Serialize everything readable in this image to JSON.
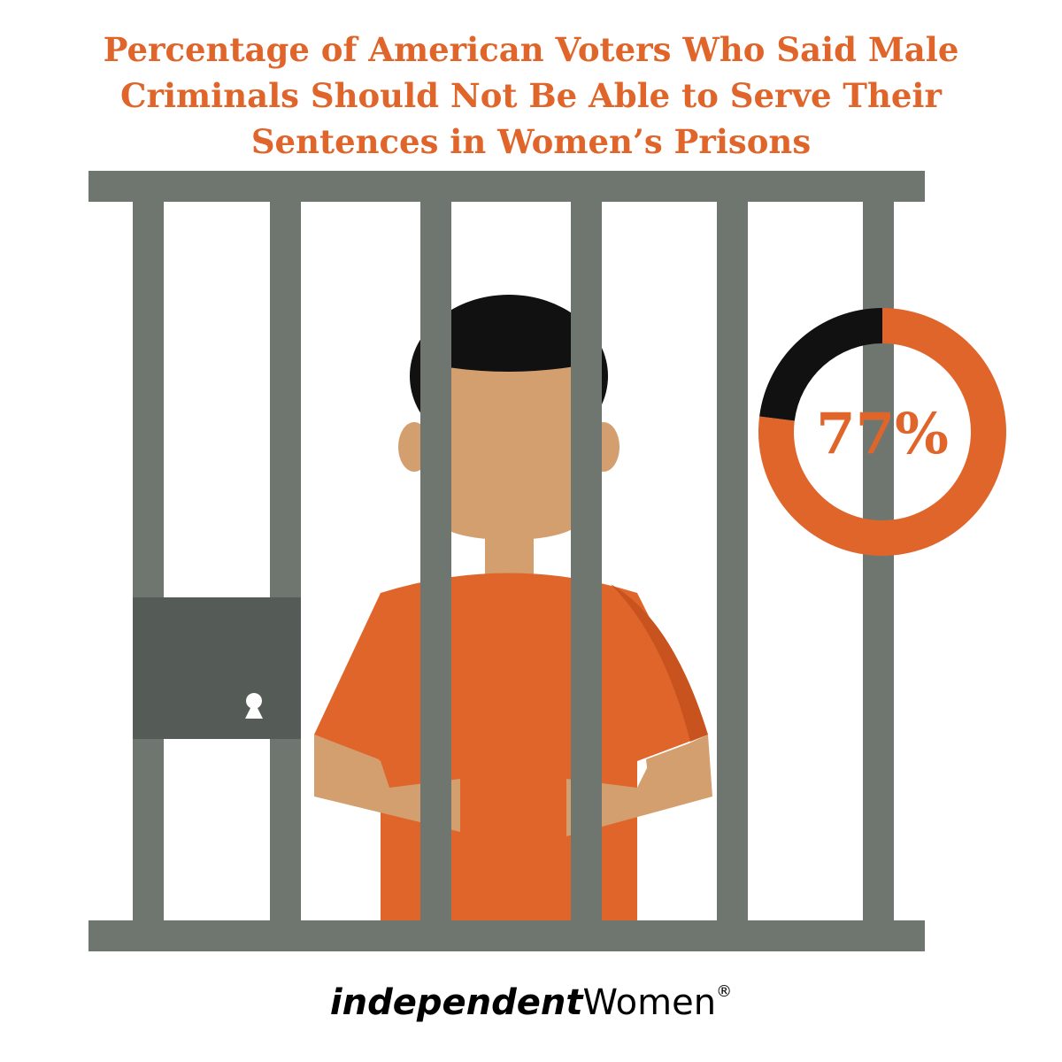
{
  "chart_data": {
    "type": "donut",
    "title": "Percentage of American Voters Who Said Male Criminals Should Not Be Able to Serve Their Sentences in Women’s Prisons",
    "values": [
      77,
      23
    ],
    "colors": [
      "#e0652a",
      "#111111"
    ],
    "value_labels": [
      "77%",
      null
    ]
  },
  "brand": {
    "name": "independent",
    "suffix": "Women",
    "mark": "®"
  }
}
